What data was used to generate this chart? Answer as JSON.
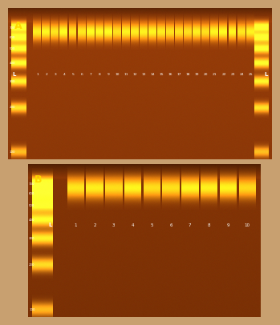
{
  "fig_bg": "#C8A070",
  "gel_A_bg": [
    0.55,
    0.22,
    0.03
  ],
  "gel_B_bg": [
    0.48,
    0.19,
    0.02
  ],
  "band_rgb": [
    1.0,
    0.82,
    0.1
  ],
  "ladder_rgb": [
    1.0,
    0.85,
    0.15
  ],
  "label_A": "A",
  "label_B": "B",
  "label_L": "L",
  "label_color_yellow": "#FFD700",
  "label_color_white": "#FFFFFF",
  "panel_A_lanes": [
    "1",
    "2",
    "3",
    "4",
    "5",
    "6",
    "7",
    "8",
    "9",
    "10",
    "11",
    "12",
    "13",
    "14",
    "15",
    "16",
    "17",
    "18",
    "19",
    "20",
    "21",
    "22",
    "23",
    "24",
    "25"
  ],
  "panel_B_lanes": [
    "1",
    "2",
    "3",
    "4",
    "5",
    "6",
    "7",
    "8",
    "9",
    "10"
  ],
  "ladder_sizes": [
    700,
    600,
    500,
    400,
    300,
    200,
    100
  ],
  "pcr_band_bp": 650,
  "max_bp": 700,
  "min_bp": 100
}
